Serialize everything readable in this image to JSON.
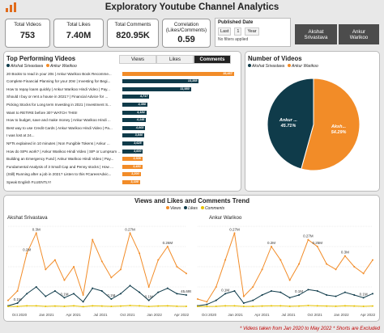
{
  "title": "Exploratory Youtube Channel Analytics",
  "kpis": [
    {
      "label": "Total Videos",
      "value": "753"
    },
    {
      "label": "Total Likes",
      "value": "7.40M"
    },
    {
      "label": "Total Comments",
      "value": "820.95K"
    },
    {
      "label": "Correlation\n(Likes/Comments)",
      "value": "0.59"
    }
  ],
  "filter": {
    "title": "Published Date",
    "period": "Last",
    "count": "1",
    "unit": "Year",
    "status": "No filters applied"
  },
  "channels": [
    "Akshat\nSrivastava",
    "Ankur\nWarikoo"
  ],
  "colors": {
    "akshat": "#0f3b4a",
    "ankur": "#f28c28",
    "accent": "#c00000"
  },
  "top_videos": {
    "title": "Top Performing Videos",
    "legend": [
      "Akshat Srivastava",
      "Ankur Warikoo"
    ],
    "tabs": [
      "Views",
      "Likes",
      "Comments"
    ],
    "active_tab": "Comments",
    "rows": [
      {
        "label": "20 Books to read in your 20s | Ankur Warikoo Book Recomme...",
        "value": 19467,
        "display": "19,467",
        "channel": "ankur"
      },
      {
        "label": "Complete Financial Planning for your 20s! | Investing for Begi...",
        "value": 13358,
        "display": "13,358",
        "channel": "akshat"
      },
      {
        "label": "How to repay loans quickly | Ankur Warikoo Hindi Video | Pay...",
        "value": 11980,
        "display": "11,980",
        "channel": "akshat"
      },
      {
        "label": "Should I buy or rent a house in 2021? | Financial Advice for ...",
        "value": 4717,
        "display": "4,717",
        "channel": "akshat"
      },
      {
        "label": "Picking Stocks for Long term Investing in 2021 | Investment S...",
        "value": 4390,
        "display": "4,390",
        "channel": "akshat"
      },
      {
        "label": "Want to RETIRE before 30? WATCH THIS!",
        "value": 4184,
        "display": "4,184",
        "channel": "akshat"
      },
      {
        "label": "How to budget, save and make money | Ankur Warikoo Hindi ...",
        "value": 4145,
        "display": "4,145",
        "channel": "akshat"
      },
      {
        "label": "Best way to use Credit Cards | Ankur Warikoo Hindi Video | Pa...",
        "value": 4003,
        "display": "4,003",
        "channel": "akshat"
      },
      {
        "label": "I was lost at 24...",
        "value": 3840,
        "display": "3,840",
        "channel": "akshat"
      },
      {
        "label": "NFTs explained in 10 minutes | Non Fungible Tokens | Ankur ...",
        "value": 3625,
        "display": "3,625",
        "channel": "akshat"
      },
      {
        "label": "How do SIPs work? | Ankur Warikoo Hindi Video | SIP or Lumpsum - whe...",
        "value": 3600,
        "display": "3,600",
        "channel": "akshat"
      },
      {
        "label": "Building an Emergency Fund | Ankur Warikoo Hindi Video | Pay...",
        "value": 3526,
        "display": "3,526",
        "channel": "ankur"
      },
      {
        "label": "Fundamental Analysis of 3 Small Cap and Penny stocks | How ...",
        "value": 3480,
        "display": "3,480",
        "channel": "ankur"
      },
      {
        "label": "(Still) Running after a job in 2021? Listen to this #CareerAdvic...",
        "value": 3200,
        "display": "3,200",
        "channel": "ankur"
      },
      {
        "label": "Speak English FLUENTLY!",
        "value": 3100,
        "display": "3,100",
        "channel": "ankur"
      }
    ],
    "max": 20500
  },
  "videos_pie": {
    "title": "Number of Videos",
    "legend": [
      "Akshat Srivastava",
      "Ankur Warikoo"
    ],
    "slices": [
      {
        "name": "Ankur ...",
        "percent": 45.71,
        "display": "45.71%",
        "color": "#0f3b4a"
      },
      {
        "name": "Aksh...",
        "percent": 54.29,
        "display": "54.29%",
        "color": "#f28c28"
      }
    ]
  },
  "trend": {
    "title": "Views and Likes and Comments Trend",
    "legend": [
      "Views",
      "Likes",
      "Comments"
    ],
    "left": {
      "name": "Akshat Srivastava",
      "xticks": [
        "Oct 2020",
        "Jan 2021",
        "Apr 2021",
        "Jul 2021",
        "Oct 2021",
        "Jan 2022",
        "Apr 2022"
      ],
      "views": [
        0.5,
        1.2,
        4.0,
        5.5,
        2.8,
        3.5,
        2.0,
        3.0,
        0.9,
        5.0,
        3.4,
        2.2,
        2.8,
        5.5,
        4.0,
        1.5,
        3.5,
        4.5,
        3.0,
        2.5
      ],
      "likes": [
        0.1,
        0.3,
        1.0,
        1.5,
        0.8,
        1.2,
        0.7,
        1.0,
        0.4,
        1.4,
        1.2,
        0.6,
        1.0,
        1.6,
        1.1,
        0.5,
        1.1,
        1.4,
        1.0,
        0.9
      ],
      "comments": [
        0.05,
        0.05,
        0.1,
        0.1,
        0.06,
        0.08,
        0.06,
        0.1,
        0.04,
        0.1,
        0.08,
        0.06,
        0.08,
        0.12,
        0.1,
        0.05,
        0.08,
        0.1,
        0.07,
        0.06
      ],
      "labels": [
        {
          "i": 3,
          "s": "views",
          "t": "0.3M"
        },
        {
          "i": 13,
          "s": "views",
          "t": "0.27M"
        },
        {
          "i": 17,
          "s": "views",
          "t": "0.26M"
        },
        {
          "i": 2,
          "s": "views",
          "t": "0.2M"
        },
        {
          "i": 1,
          "s": "likes",
          "t": "0.1M"
        },
        {
          "i": 6,
          "s": "likes",
          "t": "0.1M"
        },
        {
          "i": 11,
          "s": "likes",
          "t": "0.1M"
        },
        {
          "i": 15,
          "s": "likes",
          "t": "0.1M"
        },
        {
          "i": 19,
          "s": "likes",
          "t": "45,695"
        }
      ]
    },
    "right": {
      "name": "Ankur Warikoo",
      "xticks": [
        "Oct 2020",
        "Jan 2021",
        "Apr 2021",
        "Jul 2021",
        "Oct 2021",
        "Jan 2022",
        "Apr 2022"
      ],
      "views": [
        0.6,
        0.4,
        1.5,
        3.5,
        5.5,
        0.8,
        1.5,
        2.8,
        4.5,
        3.5,
        2.0,
        3.2,
        5.0,
        4.5,
        3.2,
        2.8,
        3.8,
        3.0,
        2.5,
        3.5
      ],
      "likes": [
        0.1,
        0.2,
        0.5,
        1.0,
        1.2,
        0.3,
        0.5,
        0.9,
        1.2,
        1.1,
        0.7,
        0.9,
        1.3,
        1.2,
        0.9,
        0.8,
        1.1,
        0.9,
        0.7,
        1.0
      ],
      "comments": [
        0.05,
        0.05,
        0.06,
        0.1,
        0.1,
        0.05,
        0.06,
        0.08,
        0.1,
        0.1,
        0.07,
        0.08,
        0.12,
        0.1,
        0.08,
        0.07,
        0.1,
        0.08,
        0.06,
        0.08
      ],
      "labels": [
        {
          "i": 4,
          "s": "views",
          "t": "0.27M"
        },
        {
          "i": 12,
          "s": "views",
          "t": "0.27M"
        },
        {
          "i": 13,
          "s": "views",
          "t": "0.25M"
        },
        {
          "i": 16,
          "s": "views",
          "t": "0.3M"
        },
        {
          "i": 8,
          "s": "views",
          "t": "0.2M"
        },
        {
          "i": 3,
          "s": "likes",
          "t": "0.1M"
        },
        {
          "i": 11,
          "s": "likes",
          "t": "0.1M"
        },
        {
          "i": 18,
          "s": "likes",
          "t": "0.1M"
        }
      ]
    }
  },
  "footnote": "* Videos taken from Jan 2020 to May 2022 * Shorts are Excluded"
}
